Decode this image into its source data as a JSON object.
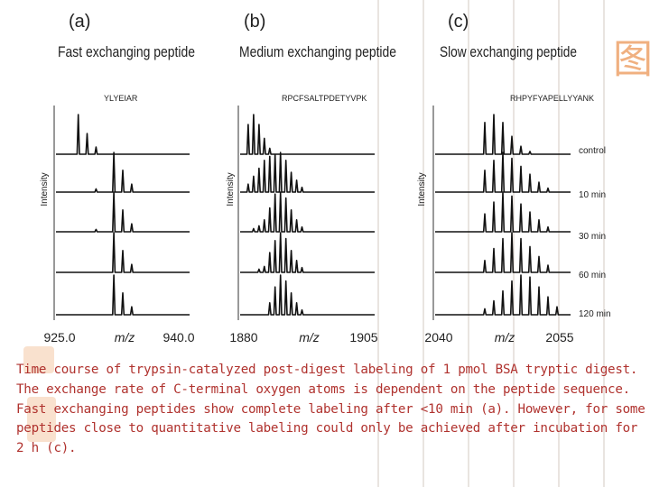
{
  "caption": "Time course of trypsin-catalyzed post-digest labeling of 1 pmol BSA tryptic digest. The exchange rate of C-terminal oxygen atoms is dependent on the peptide sequence. Fast exchanging peptides show complete labeling after <10 min (a). However, for some peptides close to quantitative labeling could only be achieved after incubation for 2 h (c).",
  "decor": {
    "ornament_icon": "chinese-seal-ornament-icon",
    "accent_color": "#f0b080"
  },
  "time_labels": [
    "control",
    "10 min",
    "30 min",
    "60 min",
    "120 min"
  ],
  "chart_data": [
    {
      "type": "line",
      "panel_label": "(a)",
      "title": "Fast exchanging peptide",
      "peptide": "YLYEIAR",
      "ylabel": "Intensity",
      "xlabel": "m/z",
      "xlim": [
        925.0,
        940.0
      ],
      "xtick_labels": [
        "925.0",
        "940.0"
      ],
      "series_peaks": [
        [
          {
            "x": 927.5,
            "h": 1.0
          },
          {
            "x": 928.5,
            "h": 0.52
          },
          {
            "x": 929.5,
            "h": 0.18
          }
        ],
        [
          {
            "x": 931.5,
            "h": 1.0
          },
          {
            "x": 932.5,
            "h": 0.55
          },
          {
            "x": 933.5,
            "h": 0.2
          },
          {
            "x": 929.5,
            "h": 0.08
          }
        ],
        [
          {
            "x": 931.5,
            "h": 1.0
          },
          {
            "x": 932.5,
            "h": 0.55
          },
          {
            "x": 933.5,
            "h": 0.2
          },
          {
            "x": 929.5,
            "h": 0.06
          }
        ],
        [
          {
            "x": 931.5,
            "h": 1.0
          },
          {
            "x": 932.5,
            "h": 0.55
          },
          {
            "x": 933.5,
            "h": 0.2
          }
        ],
        [
          {
            "x": 931.5,
            "h": 1.0
          },
          {
            "x": 932.5,
            "h": 0.55
          },
          {
            "x": 933.5,
            "h": 0.2
          }
        ]
      ]
    },
    {
      "type": "line",
      "panel_label": "(b)",
      "title": "Medium exchanging peptide",
      "peptide": "RPCFSALTPDETYVPK",
      "ylabel": "Intensity",
      "xlabel": "m/z",
      "xlim": [
        1880,
        1905
      ],
      "xtick_labels": [
        "1880",
        "1905"
      ],
      "series_peaks": [
        [
          {
            "x": 1881.5,
            "h": 0.75
          },
          {
            "x": 1882.5,
            "h": 1.0
          },
          {
            "x": 1883.5,
            "h": 0.75
          },
          {
            "x": 1884.5,
            "h": 0.4
          },
          {
            "x": 1885.5,
            "h": 0.15
          }
        ],
        [
          {
            "x": 1881.5,
            "h": 0.2
          },
          {
            "x": 1882.5,
            "h": 0.4
          },
          {
            "x": 1883.5,
            "h": 0.6
          },
          {
            "x": 1884.5,
            "h": 0.8
          },
          {
            "x": 1885.5,
            "h": 0.9
          },
          {
            "x": 1886.5,
            "h": 0.95
          },
          {
            "x": 1887.5,
            "h": 1.0
          },
          {
            "x": 1888.5,
            "h": 0.8
          },
          {
            "x": 1889.5,
            "h": 0.5
          },
          {
            "x": 1890.5,
            "h": 0.3
          },
          {
            "x": 1891.5,
            "h": 0.12
          }
        ],
        [
          {
            "x": 1882.5,
            "h": 0.08
          },
          {
            "x": 1883.5,
            "h": 0.15
          },
          {
            "x": 1884.5,
            "h": 0.3
          },
          {
            "x": 1885.5,
            "h": 0.6
          },
          {
            "x": 1886.5,
            "h": 0.95
          },
          {
            "x": 1887.5,
            "h": 1.0
          },
          {
            "x": 1888.5,
            "h": 0.85
          },
          {
            "x": 1889.5,
            "h": 0.55
          },
          {
            "x": 1890.5,
            "h": 0.3
          },
          {
            "x": 1891.5,
            "h": 0.12
          }
        ],
        [
          {
            "x": 1883.5,
            "h": 0.08
          },
          {
            "x": 1884.5,
            "h": 0.15
          },
          {
            "x": 1885.5,
            "h": 0.5
          },
          {
            "x": 1886.5,
            "h": 0.8
          },
          {
            "x": 1887.5,
            "h": 1.0
          },
          {
            "x": 1888.5,
            "h": 0.85
          },
          {
            "x": 1889.5,
            "h": 0.55
          },
          {
            "x": 1890.5,
            "h": 0.3
          },
          {
            "x": 1891.5,
            "h": 0.12
          }
        ],
        [
          {
            "x": 1885.5,
            "h": 0.3
          },
          {
            "x": 1886.5,
            "h": 0.7
          },
          {
            "x": 1887.5,
            "h": 1.0
          },
          {
            "x": 1888.5,
            "h": 0.85
          },
          {
            "x": 1889.5,
            "h": 0.55
          },
          {
            "x": 1890.5,
            "h": 0.3
          },
          {
            "x": 1891.5,
            "h": 0.12
          }
        ]
      ]
    },
    {
      "type": "line",
      "panel_label": "(c)",
      "title": "Slow exchanging peptide",
      "peptide": "RHPYFYAPELLYYANK",
      "ylabel": "Intensity",
      "xlabel": "m/z",
      "xlim": [
        2040,
        2055
      ],
      "xtick_labels": [
        "2040",
        "2055"
      ],
      "series_peaks": [
        [
          {
            "x": 2045.5,
            "h": 0.8
          },
          {
            "x": 2046.5,
            "h": 1.0
          },
          {
            "x": 2047.5,
            "h": 0.8
          },
          {
            "x": 2048.5,
            "h": 0.45
          },
          {
            "x": 2049.5,
            "h": 0.2
          },
          {
            "x": 2050.5,
            "h": 0.07
          }
        ],
        [
          {
            "x": 2045.5,
            "h": 0.55
          },
          {
            "x": 2046.5,
            "h": 0.8
          },
          {
            "x": 2047.5,
            "h": 1.0
          },
          {
            "x": 2048.5,
            "h": 0.85
          },
          {
            "x": 2049.5,
            "h": 0.65
          },
          {
            "x": 2050.5,
            "h": 0.45
          },
          {
            "x": 2051.5,
            "h": 0.25
          },
          {
            "x": 2052.5,
            "h": 0.1
          }
        ],
        [
          {
            "x": 2045.5,
            "h": 0.45
          },
          {
            "x": 2046.5,
            "h": 0.75
          },
          {
            "x": 2047.5,
            "h": 1.0
          },
          {
            "x": 2048.5,
            "h": 0.9
          },
          {
            "x": 2049.5,
            "h": 0.7
          },
          {
            "x": 2050.5,
            "h": 0.5
          },
          {
            "x": 2051.5,
            "h": 0.3
          },
          {
            "x": 2052.5,
            "h": 0.12
          }
        ],
        [
          {
            "x": 2045.5,
            "h": 0.3
          },
          {
            "x": 2046.5,
            "h": 0.6
          },
          {
            "x": 2047.5,
            "h": 0.85
          },
          {
            "x": 2048.5,
            "h": 1.0
          },
          {
            "x": 2049.5,
            "h": 0.85
          },
          {
            "x": 2050.5,
            "h": 0.65
          },
          {
            "x": 2051.5,
            "h": 0.4
          },
          {
            "x": 2052.5,
            "h": 0.18
          }
        ],
        [
          {
            "x": 2045.5,
            "h": 0.15
          },
          {
            "x": 2046.5,
            "h": 0.35
          },
          {
            "x": 2047.5,
            "h": 0.6
          },
          {
            "x": 2048.5,
            "h": 0.85
          },
          {
            "x": 2049.5,
            "h": 1.0
          },
          {
            "x": 2050.5,
            "h": 0.95
          },
          {
            "x": 2051.5,
            "h": 0.7
          },
          {
            "x": 2052.5,
            "h": 0.45
          },
          {
            "x": 2053.5,
            "h": 0.2
          }
        ]
      ]
    }
  ]
}
